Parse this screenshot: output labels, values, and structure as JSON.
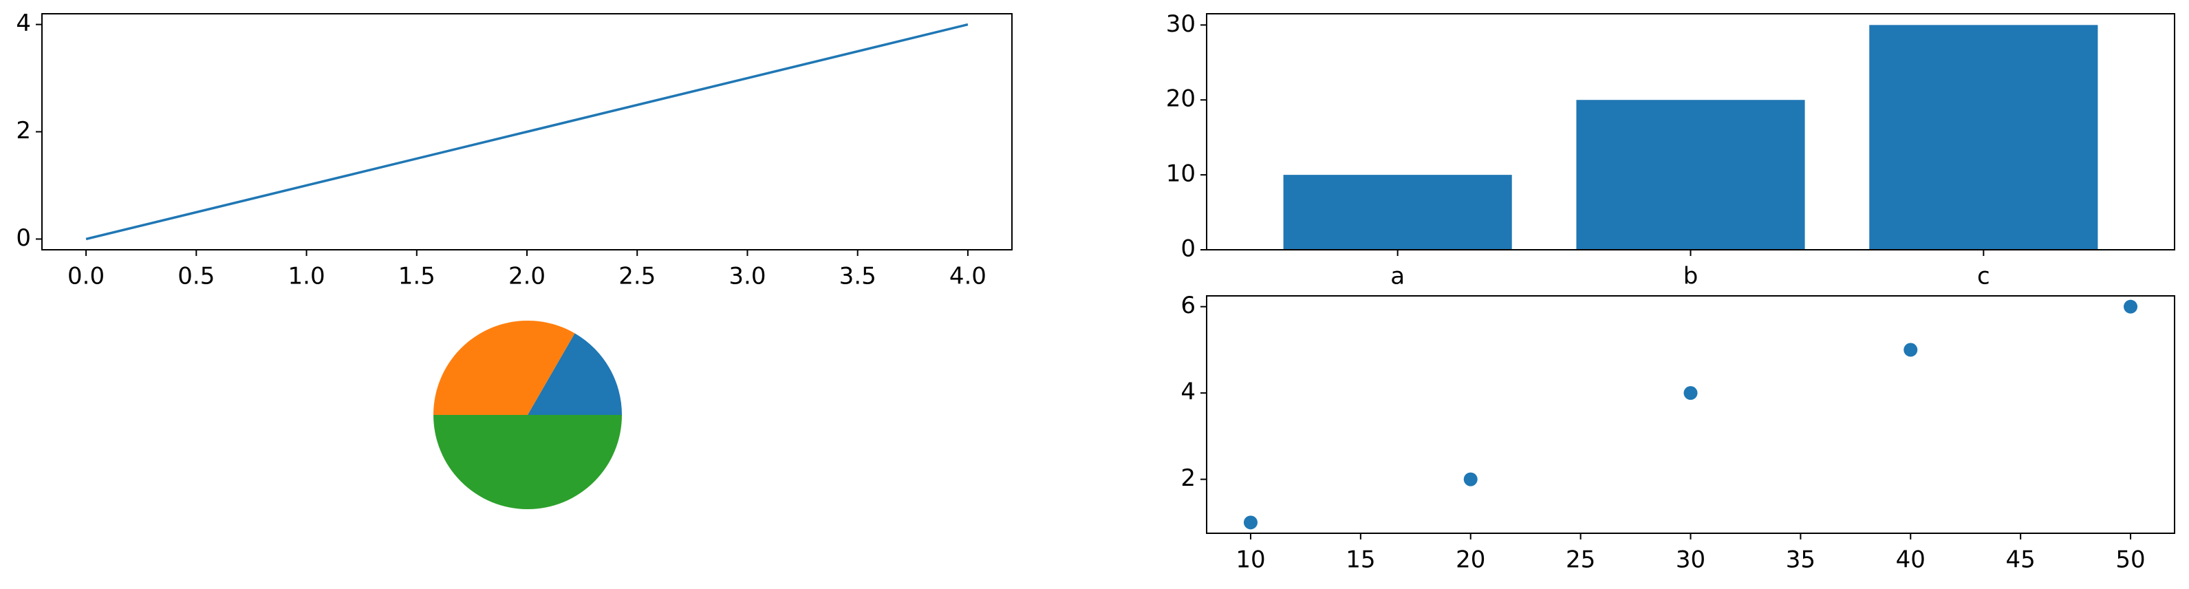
{
  "chart_data": [
    {
      "type": "line",
      "x": [
        0,
        1,
        2,
        3,
        4
      ],
      "values": [
        0,
        1,
        2,
        3,
        4
      ],
      "color": "#1f77b4",
      "xlim": [
        -0.2,
        4.2
      ],
      "ylim": [
        -0.2,
        4.2
      ],
      "xticks": [
        {
          "value": 0,
          "label": "0.0"
        },
        0.5,
        {
          "value": 1,
          "label": "1.0"
        },
        1.5,
        {
          "value": 2,
          "label": "2.0"
        },
        2.5,
        {
          "value": 3,
          "label": "3.0"
        },
        3.5,
        {
          "value": 4,
          "label": "4.0"
        }
      ],
      "yticks": [
        0,
        2,
        4
      ]
    },
    {
      "type": "bar",
      "categories": [
        "a",
        "b",
        "c"
      ],
      "values": [
        10,
        20,
        30
      ],
      "color": "#1f77b4",
      "ylim": [
        0,
        31.5
      ],
      "yticks": [
        0,
        10,
        20,
        30
      ]
    },
    {
      "type": "pie",
      "values": [
        1,
        2,
        3
      ],
      "colors": [
        "#1f77b4",
        "#ff7f0e",
        "#2ca02c"
      ]
    },
    {
      "type": "scatter",
      "x": [
        10,
        20,
        30,
        40,
        50
      ],
      "values": [
        1,
        2,
        4,
        5,
        6
      ],
      "color": "#1f77b4",
      "xlim": [
        8,
        52
      ],
      "ylim": [
        0.75,
        6.25
      ],
      "xticks": [
        10,
        15,
        20,
        25,
        30,
        35,
        40,
        45,
        50
      ],
      "yticks": [
        2,
        4,
        6
      ]
    }
  ]
}
